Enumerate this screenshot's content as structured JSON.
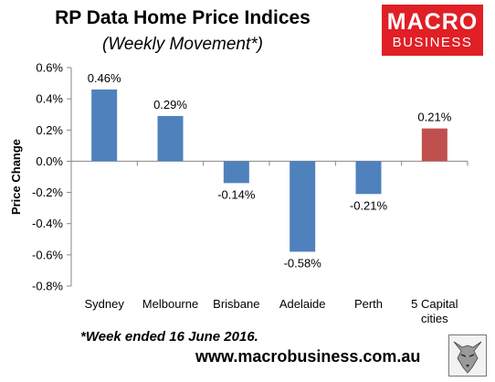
{
  "header": {
    "title": "RP Data Home Price Indices",
    "subtitle": "(Weekly Movement*)"
  },
  "logo": {
    "line1": "MACRO",
    "line2": "BUSINESS"
  },
  "footnote": "*Week ended 16 June 2016.",
  "website": "www.macrobusiness.com.au",
  "colors": {
    "bar_default": "#4f81bd",
    "bar_highlight": "#c0504d",
    "logo_red": "#e01f26"
  },
  "chart_data": {
    "type": "bar",
    "title": "RP Data Home Price Indices",
    "subtitle": "(Weekly Movement*)",
    "xlabel": "",
    "ylabel": "Price Change",
    "categories": [
      "Sydney",
      "Melbourne",
      "Brisbane",
      "Adelaide",
      "Perth",
      "5 Capital cities"
    ],
    "category_lines": [
      [
        "Sydney"
      ],
      [
        "Melbourne"
      ],
      [
        "Brisbane"
      ],
      [
        "Adelaide"
      ],
      [
        "Perth"
      ],
      [
        "5 Capital",
        "cities"
      ]
    ],
    "values": [
      0.46,
      0.29,
      -0.14,
      -0.58,
      -0.21,
      0.21
    ],
    "data_labels": [
      "0.46%",
      "0.29%",
      "-0.14%",
      "-0.58%",
      "-0.21%",
      "0.21%"
    ],
    "highlight_index": 5,
    "ylim": [
      -0.8,
      0.6
    ],
    "yticks": [
      -0.8,
      -0.6,
      -0.4,
      -0.2,
      0.0,
      0.2,
      0.4,
      0.6
    ],
    "ytick_labels": [
      "-0.8%",
      "-0.6%",
      "-0.4%",
      "-0.2%",
      "0.0%",
      "0.2%",
      "0.4%",
      "0.6%"
    ],
    "grid": false,
    "legend": "none"
  }
}
